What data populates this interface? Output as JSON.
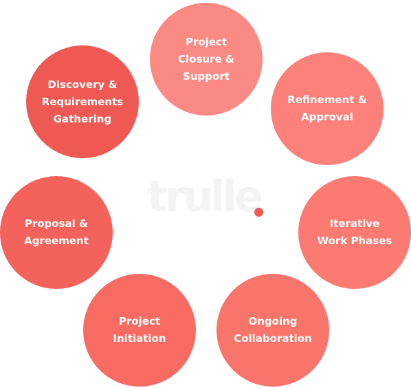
{
  "logo": {
    "text": "trulle",
    "dot_color": "#ec5a50",
    "text_color": "#f4f4f4"
  },
  "stages": [
    {
      "id": "closure",
      "label": "Project\nClosure &\nSupport",
      "color": "#fb8a85"
    },
    {
      "id": "refine",
      "label": "Refinement &\nApproval",
      "color": "#fb817a"
    },
    {
      "id": "iterative",
      "label": "Iterative\nWork Phases",
      "color": "#fb7b73"
    },
    {
      "id": "ongoing",
      "label": "Ongoing\nCollaboration",
      "color": "#f9756b"
    },
    {
      "id": "initiate",
      "label": "Project\nInitiation",
      "color": "#f76b63"
    },
    {
      "id": "proposal",
      "label": "Proposal &\nAgreement",
      "color": "#f4635b"
    },
    {
      "id": "discovery",
      "label": "Discovery &\nRequirements\nGathering",
      "color": "#ef5954"
    }
  ]
}
